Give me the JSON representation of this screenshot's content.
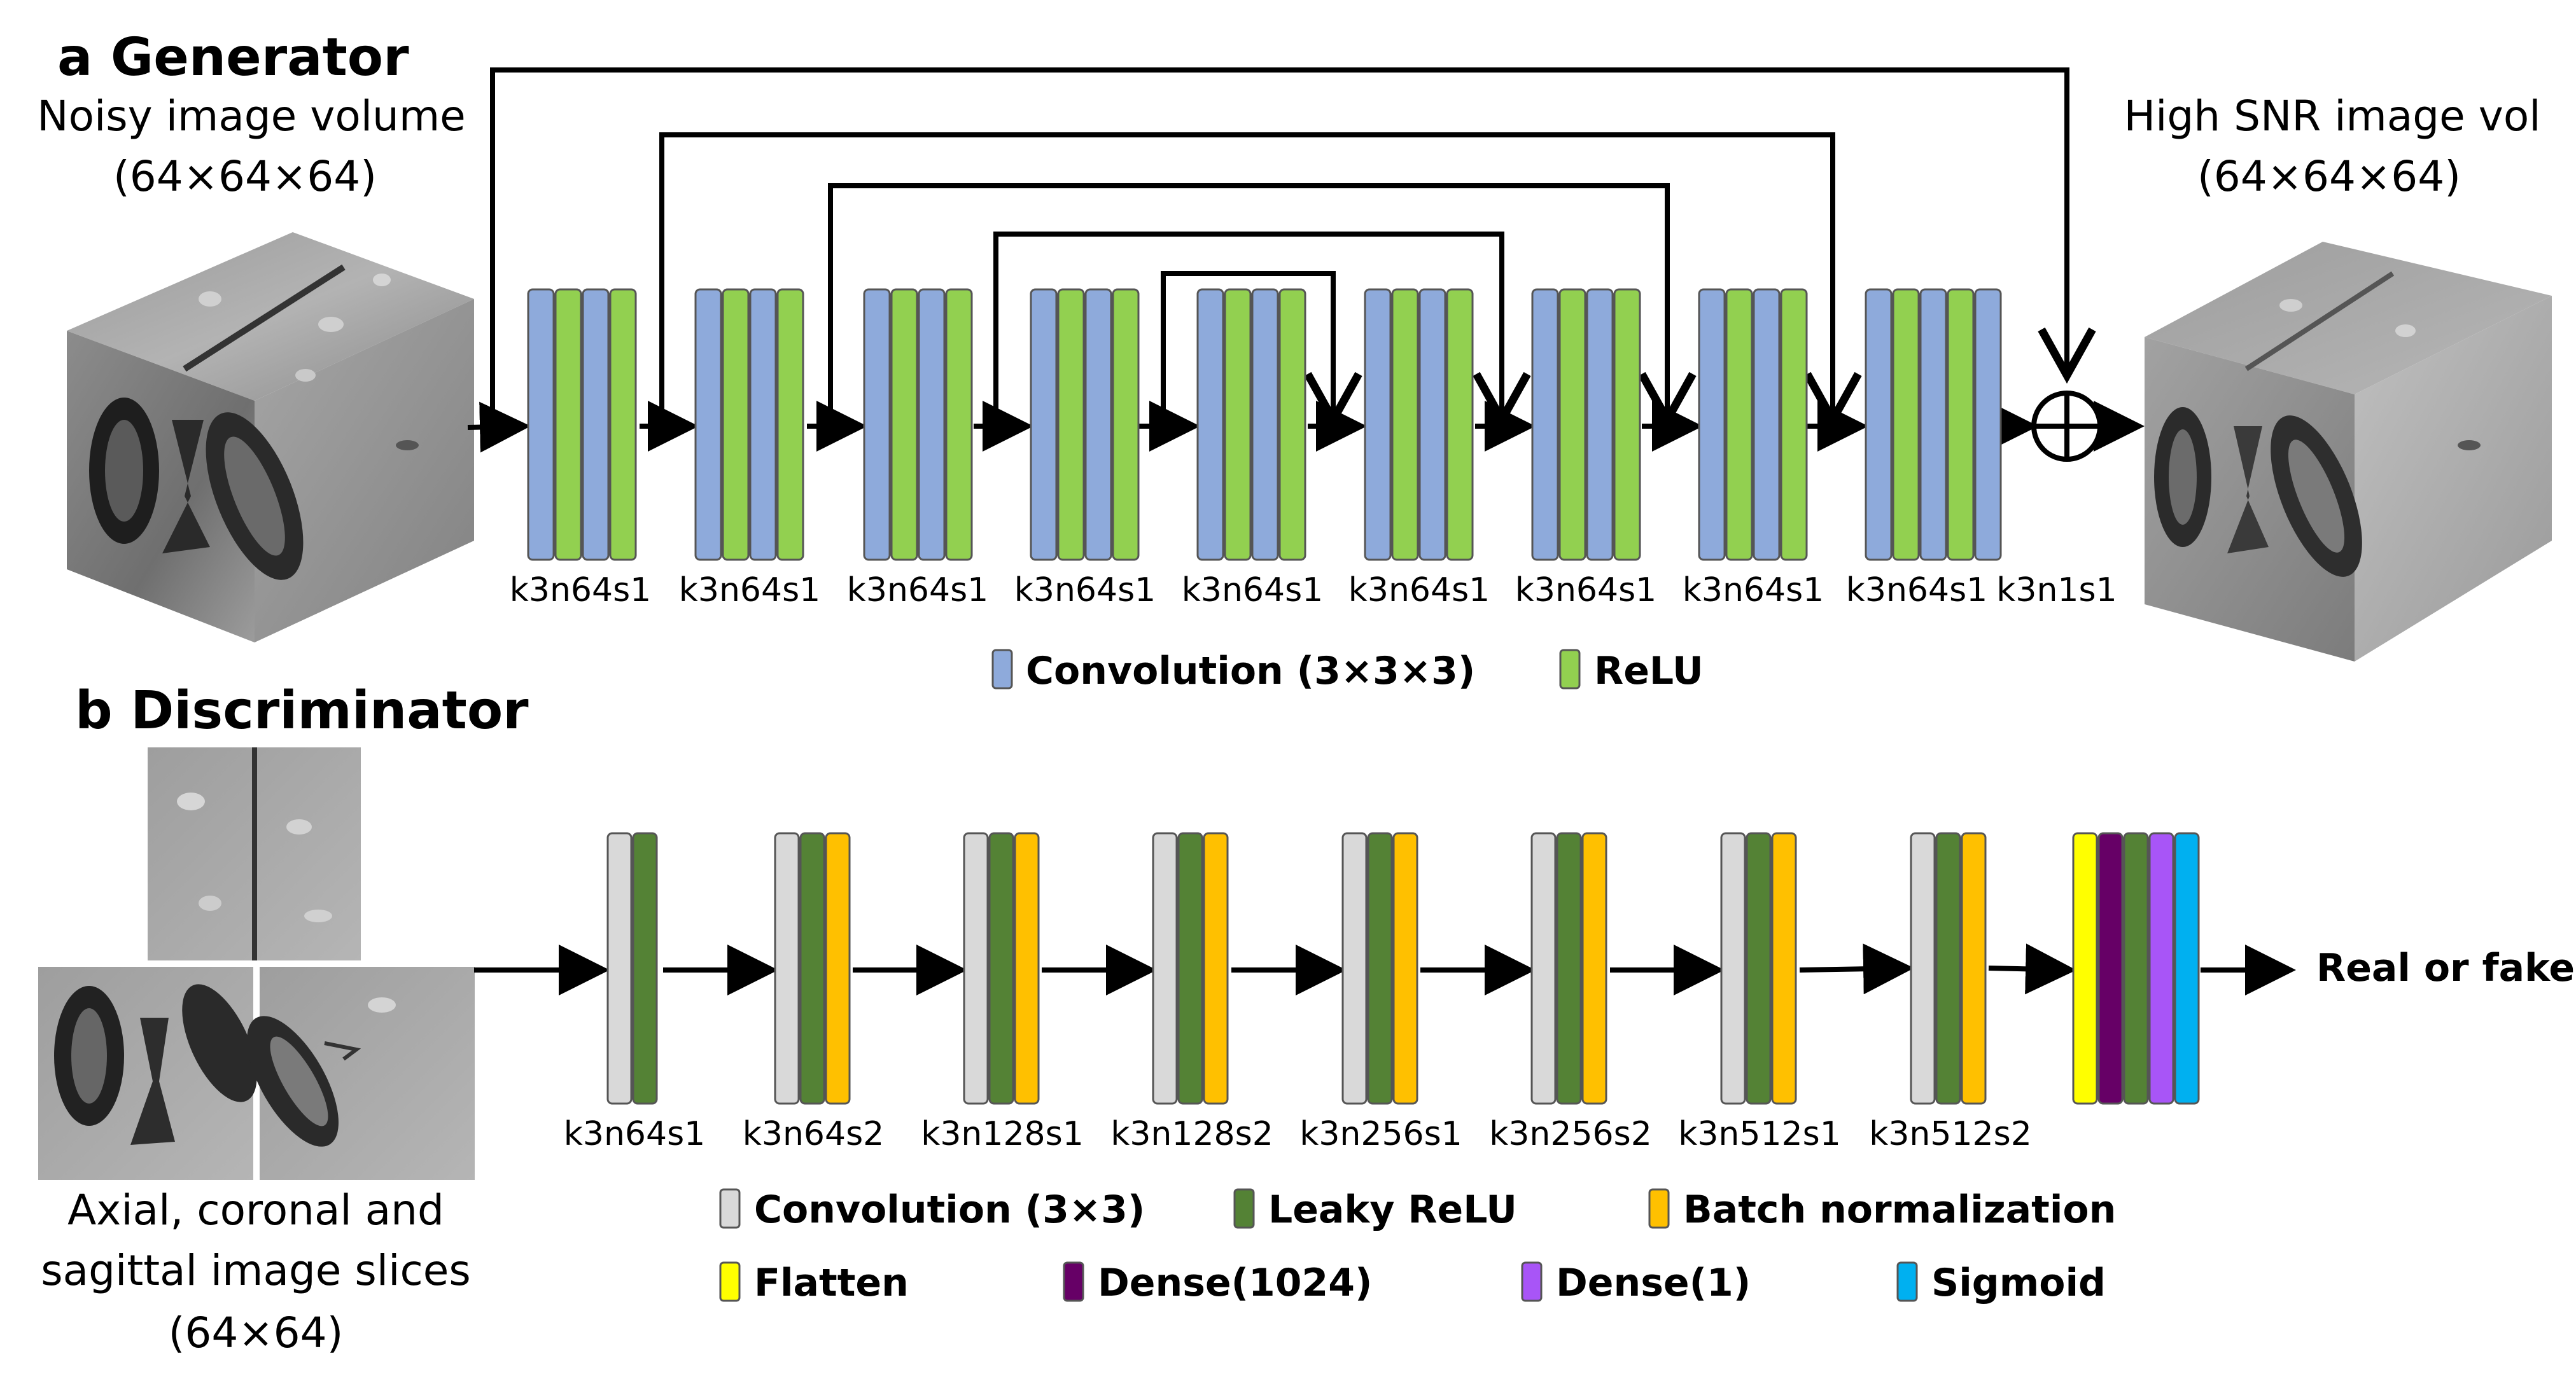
{
  "colors": {
    "convolution": "#8eaadb",
    "relu": "#92d050",
    "conv2d": "#d9d9d9",
    "leaky_relu": "#548235",
    "batch_norm": "#ffc000",
    "flatten": "#ffff00",
    "dense1024": "#660066",
    "dense1": "#a855f7",
    "sigmoid": "#00b0f0"
  },
  "generator": {
    "title": "a Generator",
    "input_caption": [
      "Noisy image volume",
      "(64×64×64)"
    ],
    "output_caption": [
      "High SNR image vol",
      "(64×64×64)"
    ],
    "blocks": [
      {
        "label": "k3n64s1",
        "layers": [
          "convolution",
          "relu",
          "convolution",
          "relu"
        ]
      },
      {
        "label": "k3n64s1",
        "layers": [
          "convolution",
          "relu",
          "convolution",
          "relu"
        ]
      },
      {
        "label": "k3n64s1",
        "layers": [
          "convolution",
          "relu",
          "convolution",
          "relu"
        ]
      },
      {
        "label": "k3n64s1",
        "layers": [
          "convolution",
          "relu",
          "convolution",
          "relu"
        ]
      },
      {
        "label": "k3n64s1",
        "layers": [
          "convolution",
          "relu",
          "convolution",
          "relu"
        ]
      },
      {
        "label": "k3n64s1",
        "layers": [
          "convolution",
          "relu",
          "convolution",
          "relu"
        ]
      },
      {
        "label": "k3n64s1",
        "layers": [
          "convolution",
          "relu",
          "convolution",
          "relu"
        ]
      },
      {
        "label": "k3n64s1",
        "layers": [
          "convolution",
          "relu",
          "convolution",
          "relu"
        ]
      },
      {
        "label": "k3n64s1",
        "layers": [
          "convolution",
          "relu",
          "convolution",
          "relu",
          "convolution"
        ]
      }
    ],
    "final_label": "k3n1s1",
    "legend": [
      {
        "color": "convolution",
        "text": "Convolution (3×3×3)"
      },
      {
        "color": "relu",
        "text": "ReLU"
      }
    ]
  },
  "discriminator": {
    "title": "b Discriminator",
    "input_caption": [
      "Axial, coronal and",
      "sagittal image slices",
      "(64×64)"
    ],
    "output_text": "Real or fake?",
    "blocks": [
      {
        "label": "k3n64s1",
        "layers": [
          "conv2d",
          "leaky_relu"
        ]
      },
      {
        "label": "k3n64s2",
        "layers": [
          "conv2d",
          "leaky_relu",
          "batch_norm"
        ]
      },
      {
        "label": "k3n128s1",
        "layers": [
          "conv2d",
          "leaky_relu",
          "batch_norm"
        ]
      },
      {
        "label": "k3n128s2",
        "layers": [
          "conv2d",
          "leaky_relu",
          "batch_norm"
        ]
      },
      {
        "label": "k3n256s1",
        "layers": [
          "conv2d",
          "leaky_relu",
          "batch_norm"
        ]
      },
      {
        "label": "k3n256s2",
        "layers": [
          "conv2d",
          "leaky_relu",
          "batch_norm"
        ]
      },
      {
        "label": "k3n512s1",
        "layers": [
          "conv2d",
          "leaky_relu",
          "batch_norm"
        ]
      },
      {
        "label": "k3n512s2",
        "layers": [
          "conv2d",
          "leaky_relu",
          "batch_norm"
        ]
      },
      {
        "label": "",
        "layers": [
          "flatten",
          "dense1024",
          "leaky_relu",
          "dense1",
          "sigmoid"
        ]
      }
    ],
    "legend": [
      {
        "color": "conv2d",
        "text": "Convolution (3×3)"
      },
      {
        "color": "leaky_relu",
        "text": "Leaky ReLU"
      },
      {
        "color": "batch_norm",
        "text": "Batch normalization"
      },
      {
        "color": "flatten",
        "text": "Flatten"
      },
      {
        "color": "dense1024",
        "text": "Dense(1024)"
      },
      {
        "color": "dense1",
        "text": "Dense(1)"
      },
      {
        "color": "sigmoid",
        "text": "Sigmoid"
      }
    ]
  }
}
